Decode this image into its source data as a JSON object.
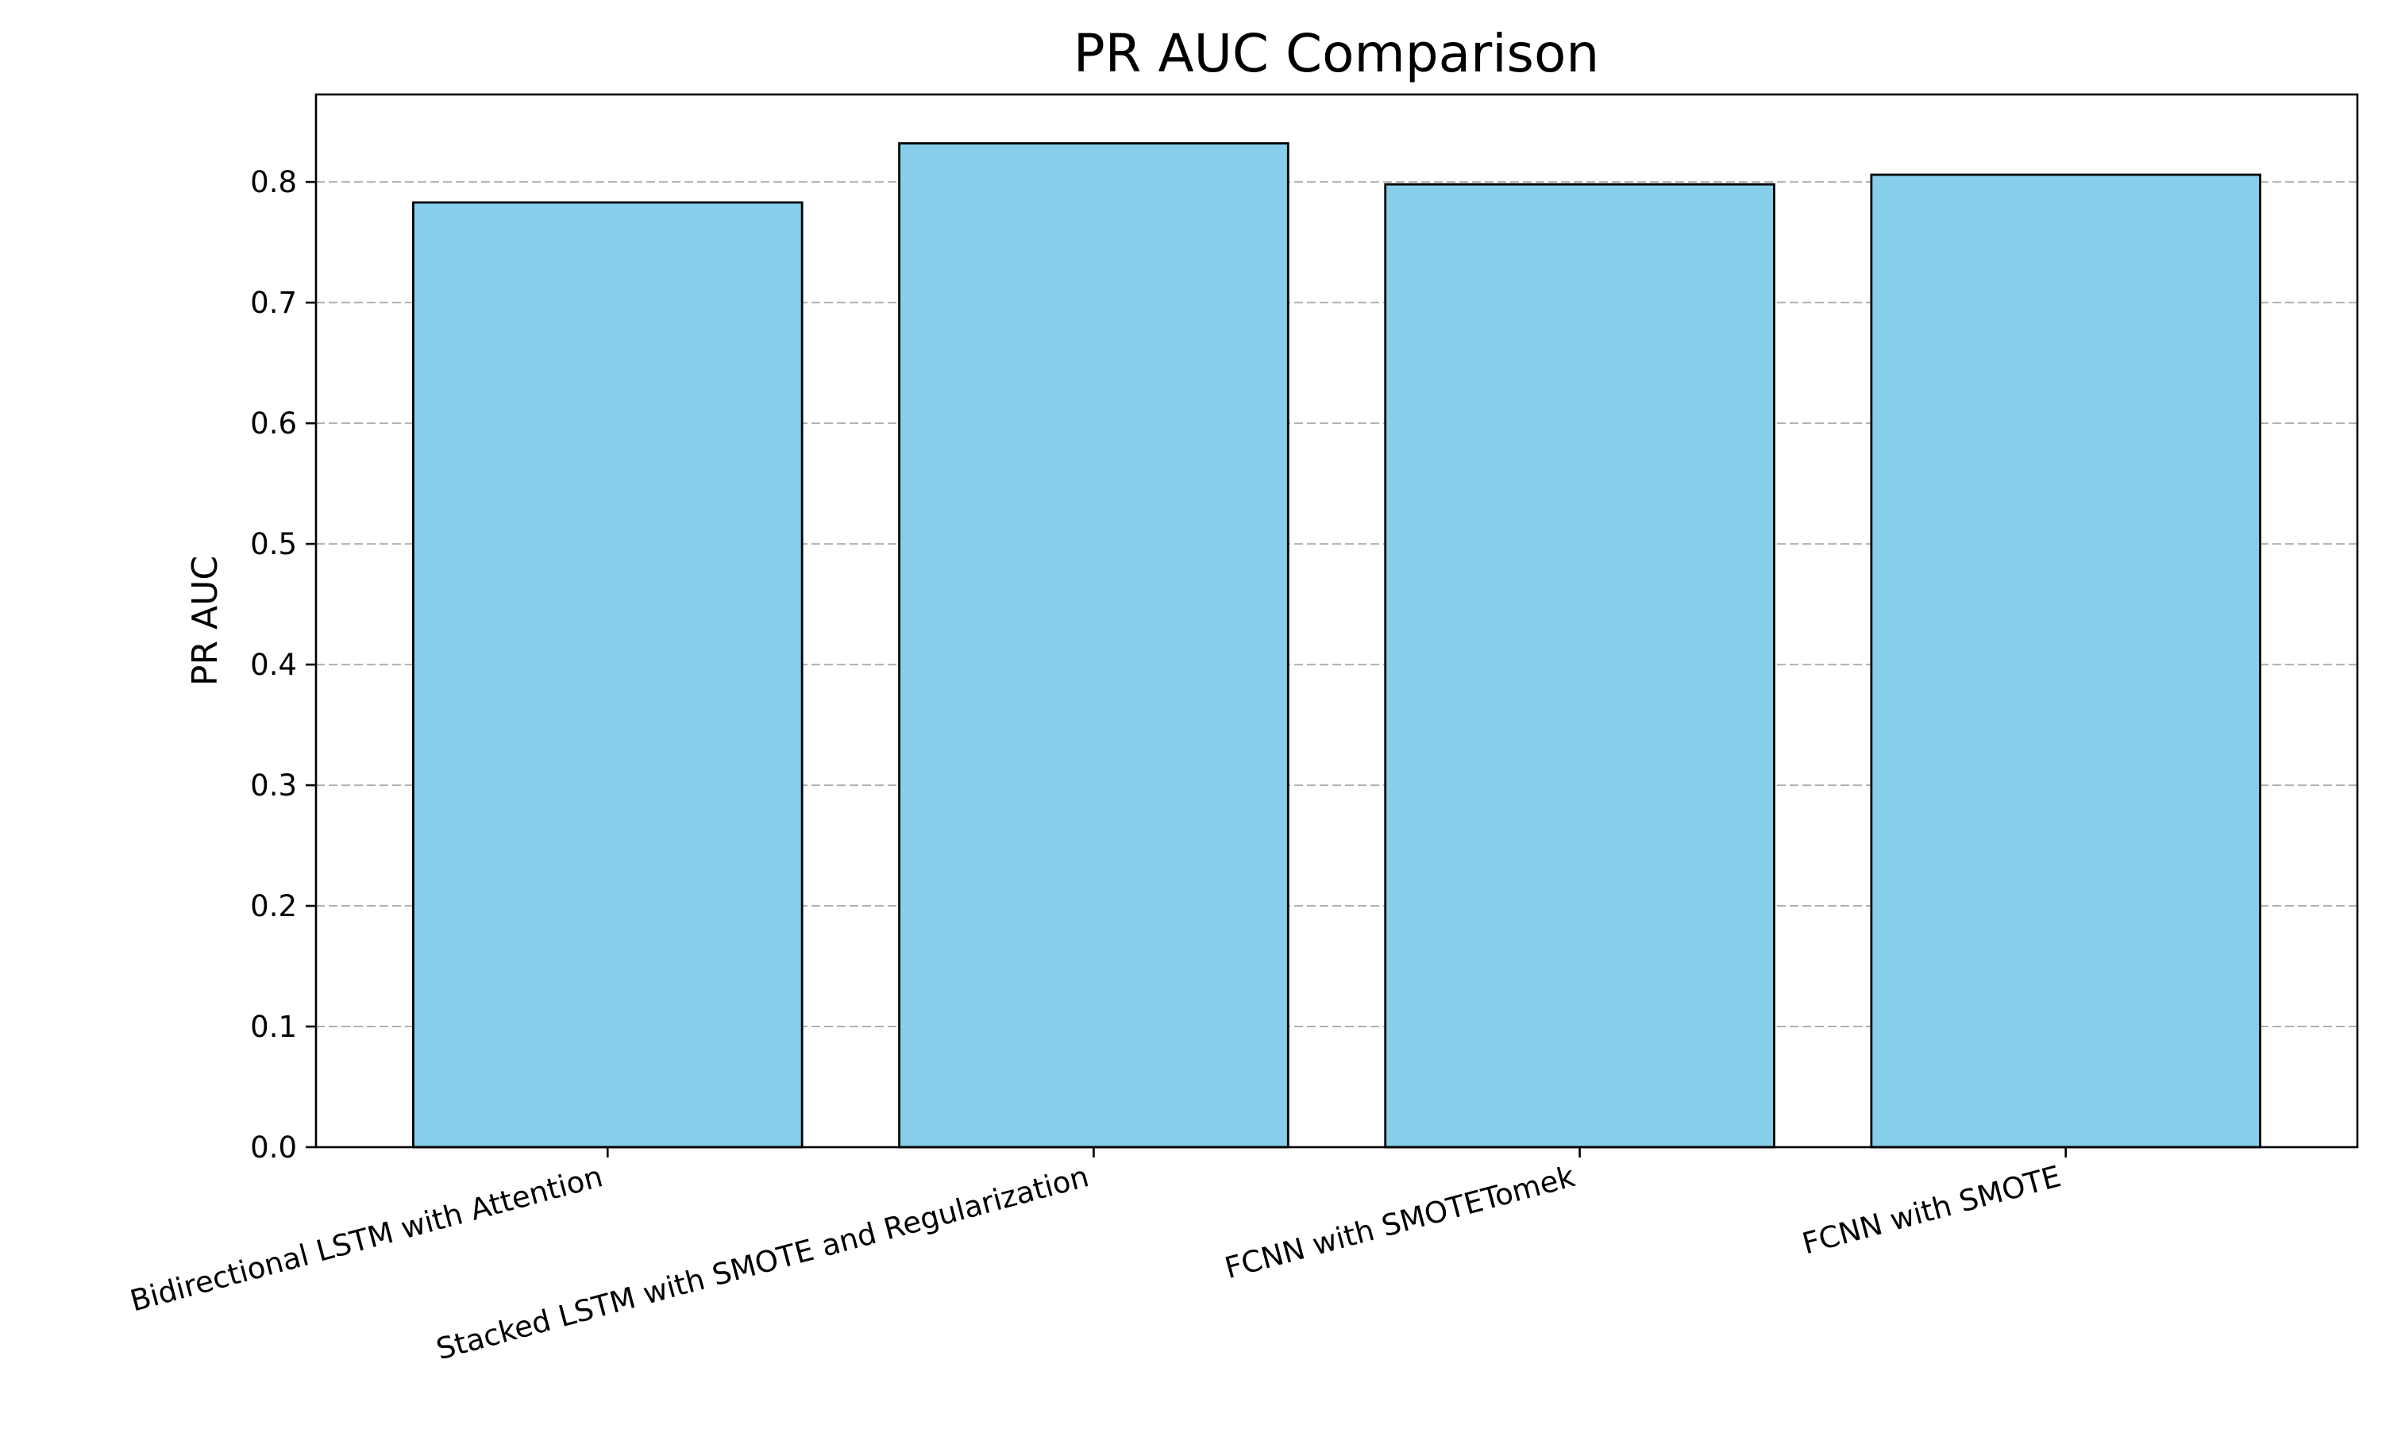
{
  "colors": {
    "bar_fill": "#87CEEB",
    "bar_edge": "#000000",
    "grid": "#b0b0b0",
    "axis": "#000000"
  },
  "chart_data": {
    "type": "bar",
    "title": "PR AUC Comparison",
    "xlabel": "",
    "ylabel": "PR AUC",
    "categories": [
      "Bidirectional LSTM with Attention",
      "Stacked LSTM with SMOTE and Regularization",
      "FCNN with SMOTETomek",
      "FCNN with SMOTE"
    ],
    "values": [
      0.783,
      0.832,
      0.798,
      0.806
    ],
    "ylim": [
      0.0,
      0.8725
    ],
    "yticks": [
      0.0,
      0.1,
      0.2,
      0.3,
      0.4,
      0.5,
      0.6,
      0.7,
      0.8
    ],
    "ytick_labels": [
      "0.0",
      "0.1",
      "0.2",
      "0.3",
      "0.4",
      "0.5",
      "0.6",
      "0.7",
      "0.8"
    ],
    "grid": "y-dashed",
    "xtick_rotation": 15
  }
}
